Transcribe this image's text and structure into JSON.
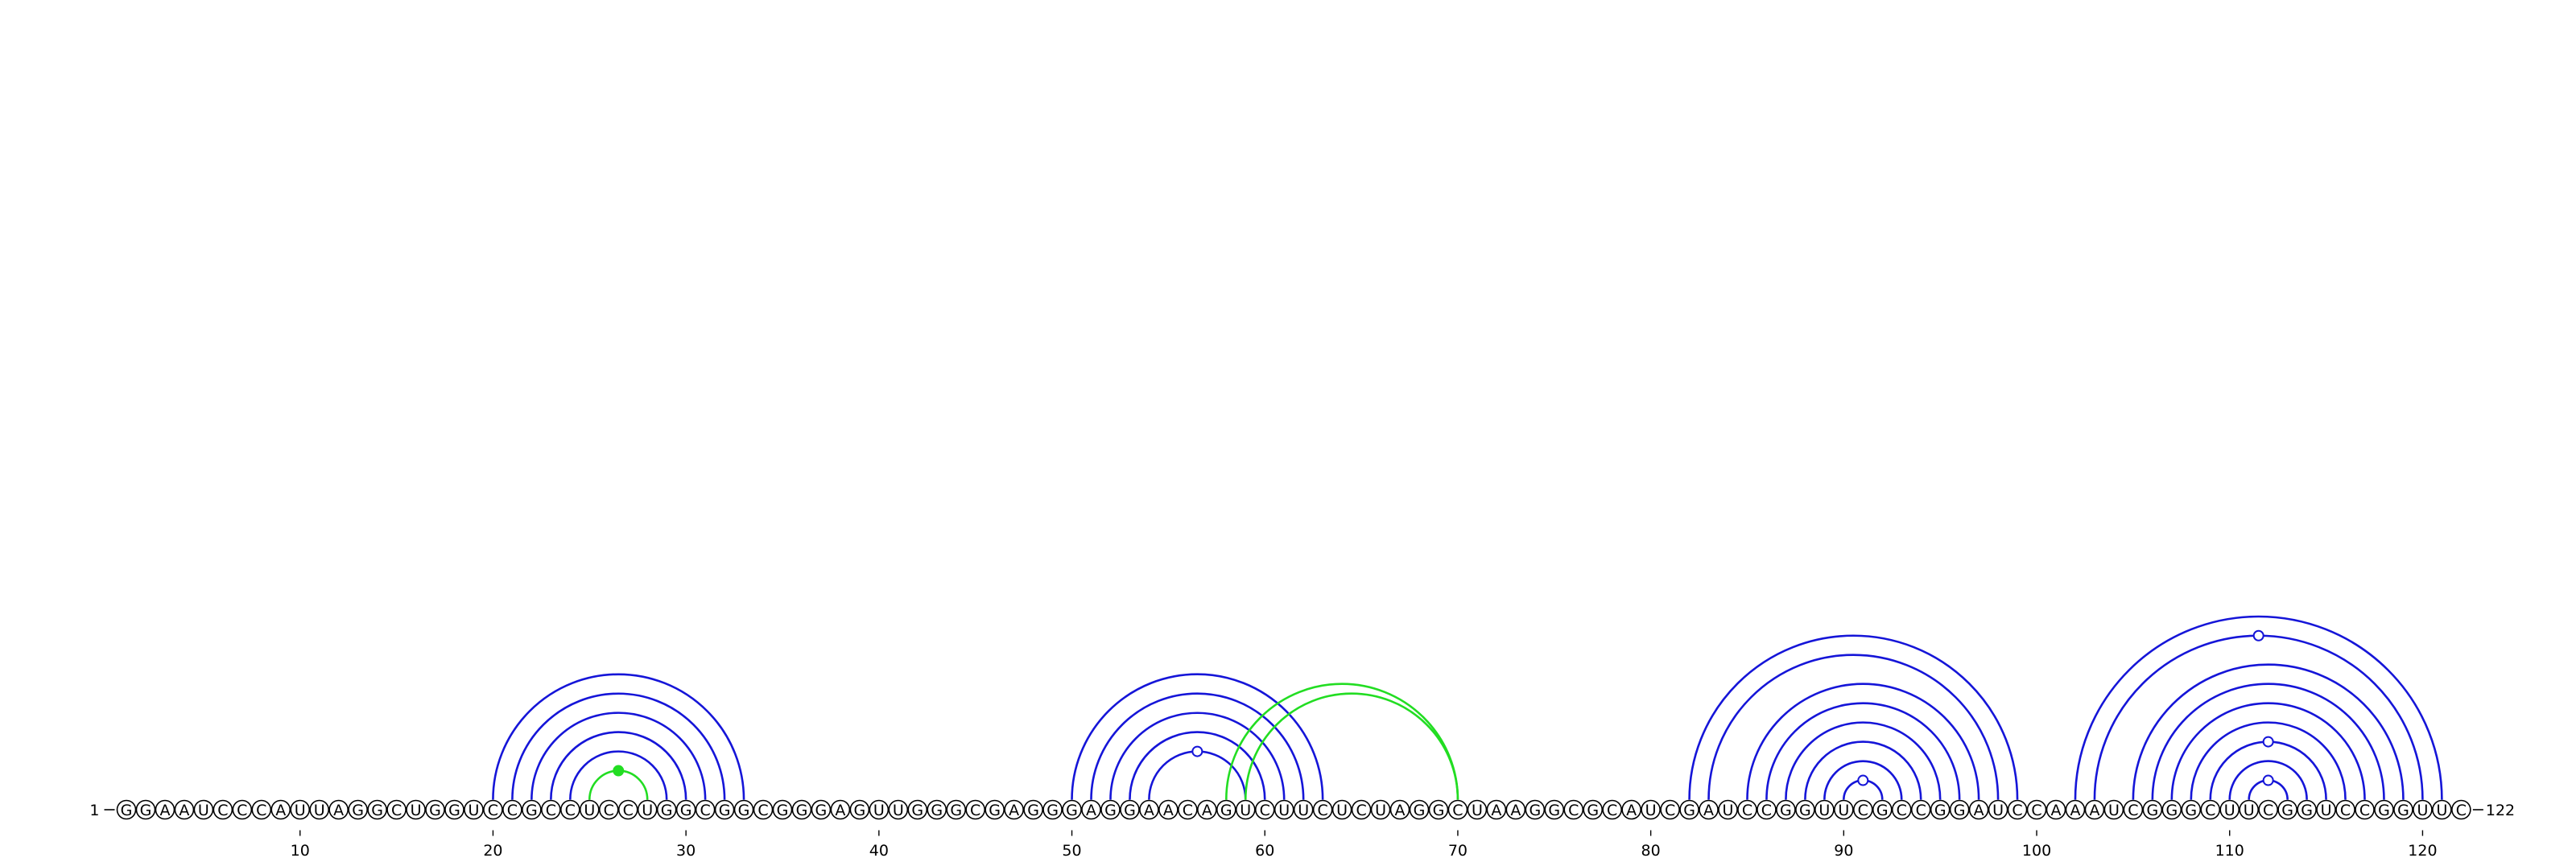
{
  "diagram": {
    "type": "rna-arc-diagram",
    "sequence": "GGAAUCCCAUUAGGCUGGUCCGCCUCCUGGCGGCGGGAGUUGGGCGAGGGAGGAACAGUCUUCUCUAGGCUAAGGCGCAUCGAUCCGGUUCGCCGGAUCCAAAUCGGGCUUCGGUCCGGUUC",
    "length": 122,
    "start_label": "1",
    "end_label": "122",
    "ticks": [
      10,
      20,
      30,
      40,
      50,
      60,
      70,
      80,
      90,
      100,
      110,
      120
    ],
    "colors": {
      "stem": "#1515d8",
      "pseudoknot": "#22dd22",
      "outline": "#000000",
      "background": "#ffffff"
    },
    "stems": [
      {
        "color": "stem",
        "pairs": [
          [
            20,
            33
          ],
          [
            21,
            32
          ],
          [
            22,
            31
          ],
          [
            23,
            30
          ],
          [
            24,
            29
          ]
        ]
      },
      {
        "color": "pseudoknot",
        "pairs": [
          [
            25,
            28
          ]
        ],
        "marker": "filled"
      },
      {
        "color": "stem",
        "pairs": [
          [
            50,
            63
          ],
          [
            51,
            62
          ],
          [
            52,
            61
          ],
          [
            53,
            60
          ],
          [
            54,
            59
          ]
        ],
        "marker": "open",
        "marker_on": [
          [
            54,
            59
          ]
        ]
      },
      {
        "color": "pseudoknot",
        "pairs": [
          [
            58,
            70
          ],
          [
            59,
            70
          ]
        ]
      },
      {
        "color": "stem",
        "pairs": [
          [
            82,
            99
          ],
          [
            83,
            98
          ],
          [
            85,
            97
          ],
          [
            86,
            96
          ],
          [
            87,
            95
          ],
          [
            88,
            94
          ],
          [
            89,
            93
          ],
          [
            90,
            92
          ]
        ],
        "marker": "open",
        "marker_on": [
          [
            90,
            92
          ]
        ]
      },
      {
        "color": "stem",
        "pairs": [
          [
            102,
            121
          ],
          [
            103,
            120
          ],
          [
            105,
            119
          ],
          [
            106,
            118
          ],
          [
            107,
            117
          ],
          [
            108,
            116
          ],
          [
            109,
            115
          ],
          [
            110,
            114
          ],
          [
            111,
            113
          ]
        ],
        "marker": "open",
        "marker_on": [
          [
            103,
            120
          ],
          [
            109,
            115
          ],
          [
            111,
            113
          ]
        ]
      }
    ]
  }
}
